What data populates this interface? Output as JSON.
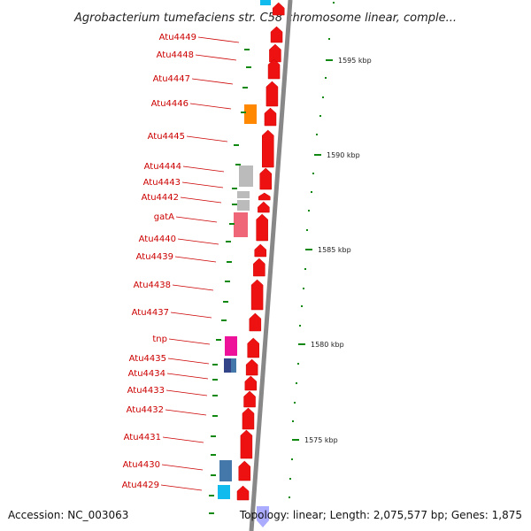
{
  "title": "Agrobacterium tumefaciens str. C58 chromosome linear, comple...",
  "footer": {
    "accession": "Accession: NC_003063",
    "summary": "Topology: linear; Length: 2,075,577 bp; Genes: 1,875"
  },
  "ruler_ticks": [
    {
      "label": "1595 kbp"
    },
    {
      "label": "1590 kbp"
    },
    {
      "label": "1585 kbp"
    },
    {
      "label": "1580 kbp"
    },
    {
      "label": "1575 kbp"
    }
  ],
  "gene_labels": [
    "Atu4449",
    "Atu4448",
    "Atu4447",
    "Atu4446",
    "Atu4445",
    "Atu4444",
    "Atu4443",
    "Atu4442",
    "gatA",
    "Atu4440",
    "Atu4439",
    "Atu4438",
    "Atu4437",
    "tnp",
    "Atu4435",
    "Atu4434",
    "Atu4433",
    "Atu4432",
    "Atu4431",
    "Atu4430",
    "Atu4429"
  ],
  "colors": {
    "gene": "#ee1111",
    "label": "#cc0000",
    "connector": "#cc0000",
    "backbone": "#888888",
    "tick": "#118811",
    "orange_feature": "#ff8800",
    "gray_feature": "#bbbbbb",
    "pink_feature": "#ee6677",
    "magenta_feature": "#ee1199",
    "navy_feature": "#334488",
    "steel_feature": "#4477aa",
    "cyan_feature": "#11bbee",
    "blue_marker": "#8888ff"
  }
}
